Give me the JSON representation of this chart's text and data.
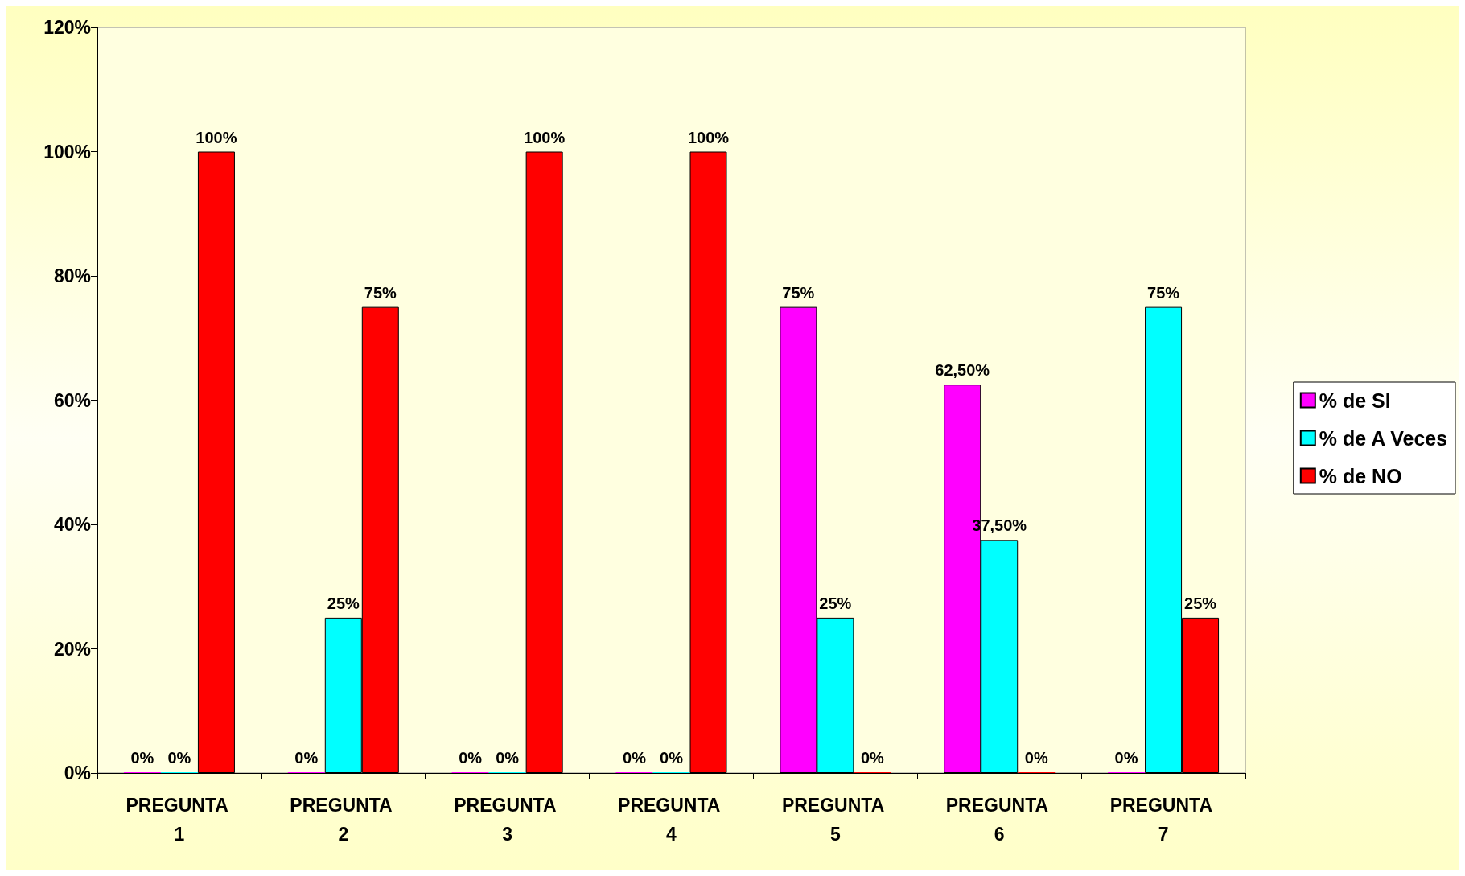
{
  "chart_data": {
    "type": "bar",
    "categories": [
      "PREGUNTA 1",
      "PREGUNTA 2",
      "PREGUNTA 3",
      "PREGUNTA 4",
      "PREGUNTA 5",
      "PREGUNTA 6",
      "PREGUNTA 7"
    ],
    "series": [
      {
        "name": "% de SI",
        "color": "#ff00ff",
        "values": [
          0,
          0,
          0,
          0,
          75,
          62.5,
          0
        ],
        "value_labels": [
          "0%",
          "0%",
          "0%",
          "0%",
          "75%",
          "62,50%",
          "0%"
        ]
      },
      {
        "name": "% de A Veces",
        "color": "#00ffff",
        "values": [
          0,
          25,
          0,
          0,
          25,
          37.5,
          75
        ],
        "value_labels": [
          "0%",
          "25%",
          "0%",
          "0%",
          "25%",
          "37,50%",
          "75%"
        ]
      },
      {
        "name": "% de NO",
        "color": "#ff0000",
        "values": [
          100,
          75,
          100,
          100,
          0,
          0,
          25
        ],
        "value_labels": [
          "100%",
          "75%",
          "100%",
          "100%",
          "0%",
          "0%",
          "25%"
        ]
      }
    ],
    "ylim": [
      0,
      120
    ],
    "yticks": [
      {
        "value": 0,
        "label": "0%"
      },
      {
        "value": 20,
        "label": "20%"
      },
      {
        "value": 40,
        "label": "40%"
      },
      {
        "value": 60,
        "label": "60%"
      },
      {
        "value": 80,
        "label": "80%"
      },
      {
        "value": 100,
        "label": "100%"
      },
      {
        "value": 120,
        "label": "120%"
      }
    ],
    "grid": false,
    "legend": "right"
  }
}
